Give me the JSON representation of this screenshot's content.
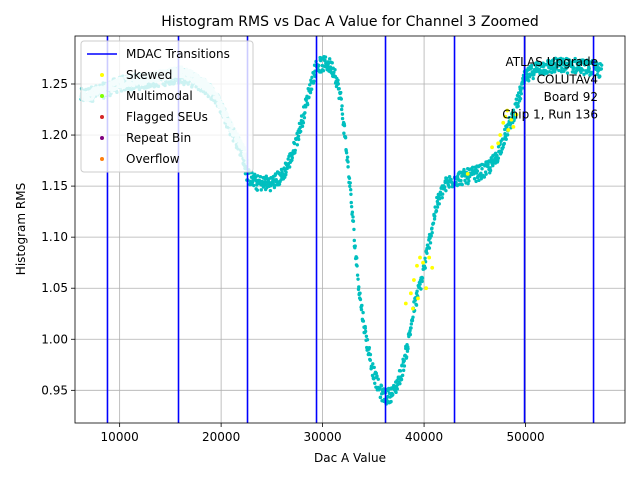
{
  "chart_data": {
    "type": "scatter",
    "title": "Histogram RMS vs Dac A Value for Channel 3 Zoomed",
    "xlabel": "Dac A Value",
    "ylabel": "Histogram RMS",
    "xlim": [
      5600,
      59800
    ],
    "ylim": [
      0.918,
      1.297
    ],
    "xticks": [
      10000,
      20000,
      30000,
      40000,
      50000
    ],
    "xtick_labels": [
      "10000",
      "20000",
      "30000",
      "40000",
      "50000"
    ],
    "yticks": [
      0.95,
      1.0,
      1.05,
      1.1,
      1.15,
      1.2,
      1.25
    ],
    "ytick_labels": [
      "0.95",
      "1.00",
      "1.05",
      "1.10",
      "1.15",
      "1.20",
      "1.25"
    ],
    "grid": true,
    "legend_position": "top-left",
    "annotation": [
      "ATLAS Upgrade",
      "COLUTAv4",
      "Board 92",
      "Chip 1, Run 136"
    ],
    "mdac_transitions": {
      "name": "MDAC Transitions",
      "color": "#0000ff",
      "x": [
        8800,
        15800,
        22600,
        29400,
        36200,
        43000,
        49900,
        56700
      ]
    },
    "series": [
      {
        "name": "",
        "color": "#00bfbf",
        "curve": [
          [
            6200,
            1.238
          ],
          [
            8000,
            1.242
          ],
          [
            8800,
            1.245
          ],
          [
            10000,
            1.25
          ],
          [
            12000,
            1.252
          ],
          [
            14000,
            1.255
          ],
          [
            15500,
            1.258
          ],
          [
            15800,
            1.258
          ],
          [
            17000,
            1.255
          ],
          [
            18000,
            1.25
          ],
          [
            19000,
            1.243
          ],
          [
            20000,
            1.228
          ],
          [
            21000,
            1.205
          ],
          [
            22000,
            1.185
          ],
          [
            22600,
            1.16
          ],
          [
            23500,
            1.153
          ],
          [
            25000,
            1.153
          ],
          [
            26000,
            1.16
          ],
          [
            27000,
            1.18
          ],
          [
            28000,
            1.215
          ],
          [
            28800,
            1.248
          ],
          [
            29400,
            1.268
          ],
          [
            30500,
            1.27
          ],
          [
            31200,
            1.262
          ],
          [
            31800,
            1.235
          ],
          [
            32200,
            1.2
          ],
          [
            32700,
            1.15
          ],
          [
            33200,
            1.09
          ],
          [
            33700,
            1.04
          ],
          [
            34300,
            1.0
          ],
          [
            35000,
            0.968
          ],
          [
            35600,
            0.95
          ],
          [
            36200,
            0.943
          ],
          [
            37000,
            0.948
          ],
          [
            37800,
            0.968
          ],
          [
            38400,
            0.995
          ],
          [
            39000,
            1.03
          ],
          [
            39800,
            1.06
          ],
          [
            40500,
            1.095
          ],
          [
            41200,
            1.13
          ],
          [
            42000,
            1.15
          ],
          [
            43000,
            1.157
          ],
          [
            44500,
            1.16
          ],
          [
            46000,
            1.165
          ],
          [
            47000,
            1.175
          ],
          [
            48000,
            1.2
          ],
          [
            49000,
            1.225
          ],
          [
            49900,
            1.255
          ],
          [
            51000,
            1.265
          ],
          [
            53000,
            1.268
          ],
          [
            55000,
            1.268
          ],
          [
            57000,
            1.265
          ],
          [
            57500,
            1.262
          ]
        ]
      },
      {
        "name": "",
        "color": "#c8f4f4",
        "curve": [
          [
            6200,
            1.238
          ],
          [
            8000,
            1.242
          ],
          [
            10000,
            1.251
          ],
          [
            12000,
            1.254
          ],
          [
            14000,
            1.258
          ],
          [
            16000,
            1.262
          ],
          [
            17000,
            1.258
          ],
          [
            18000,
            1.252
          ],
          [
            19000,
            1.245
          ],
          [
            20000,
            1.228
          ],
          [
            21000,
            1.207
          ],
          [
            22000,
            1.19
          ],
          [
            22600,
            1.175
          ]
        ]
      },
      {
        "name": "Skewed",
        "color": "#ffff00",
        "points": [
          [
            38200,
            1.035
          ],
          [
            38700,
            1.045
          ],
          [
            39000,
            1.058
          ],
          [
            39300,
            1.072
          ],
          [
            39600,
            1.08
          ],
          [
            39900,
            1.075
          ],
          [
            40200,
            1.05
          ],
          [
            40500,
            1.08
          ],
          [
            40800,
            1.07
          ],
          [
            39400,
            1.04
          ],
          [
            38900,
            1.03
          ],
          [
            47500,
            1.2
          ],
          [
            47800,
            1.212
          ],
          [
            48000,
            1.218
          ],
          [
            48300,
            1.205
          ],
          [
            48600,
            1.215
          ],
          [
            48800,
            1.208
          ],
          [
            49100,
            1.22
          ],
          [
            47300,
            1.192
          ],
          [
            48200,
            1.224
          ],
          [
            44300,
            1.162
          ],
          [
            46700,
            1.188
          ]
        ]
      },
      {
        "name": "Multimodal",
        "color": "#7fff00",
        "points": []
      },
      {
        "name": "Flagged SEUs",
        "color": "#d62728",
        "points": []
      },
      {
        "name": "Repeat Bin",
        "color": "#800080",
        "points": []
      },
      {
        "name": "Overflow",
        "color": "#ff7f0e",
        "points": []
      }
    ]
  }
}
